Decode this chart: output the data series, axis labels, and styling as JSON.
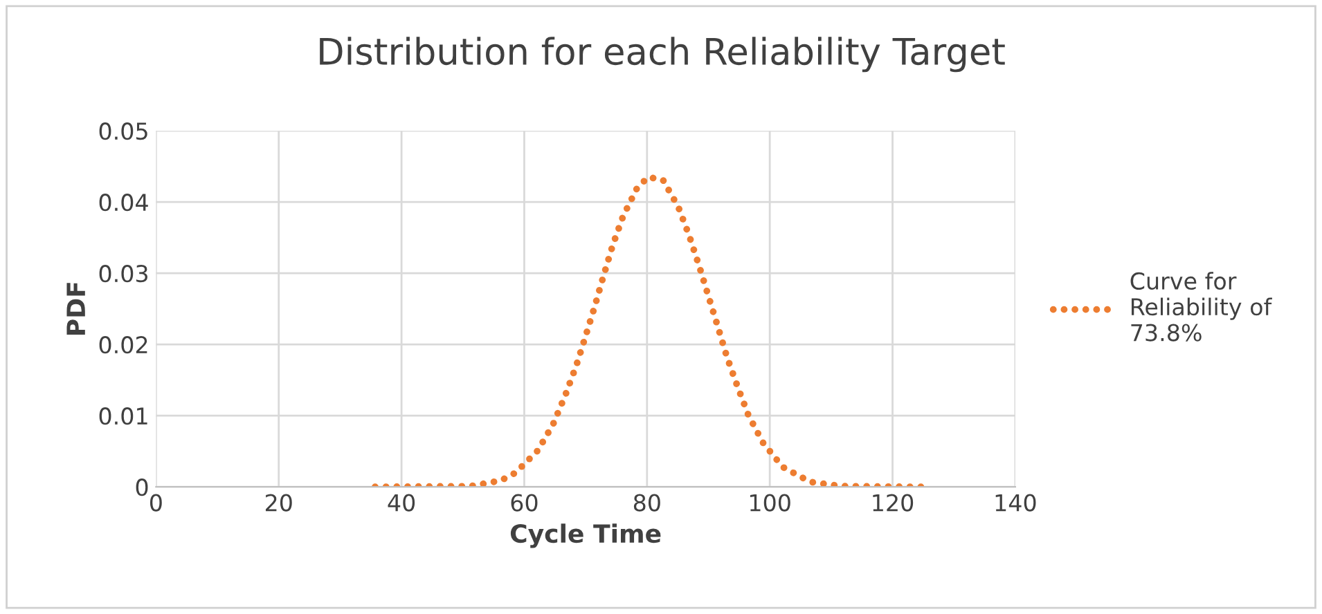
{
  "chart_data": {
    "type": "line",
    "title": "Distribution for each Reliability Target",
    "xlabel": "Cycle Time",
    "ylabel": "PDF",
    "xlim": [
      0,
      140
    ],
    "xticks": [
      0,
      20,
      40,
      60,
      80,
      100,
      120,
      140
    ],
    "ylim": [
      0,
      0.05
    ],
    "yticks": [
      0,
      0.01,
      0.02,
      0.03,
      0.04,
      0.05
    ],
    "grid": true,
    "legend": "right",
    "line_style": "dotted",
    "marker": "none",
    "series": [
      {
        "name": "Curve for\nReliability of\n73.8%",
        "color": "#ed7d31",
        "x": [
          35.7,
          51.2,
          56.2,
          58.6,
          62.2,
          64.7,
          66.7,
          68.5,
          70.0,
          71.5,
          72.9,
          74.4,
          76.1,
          78.4,
          80.2,
          82.6,
          85.1,
          86.9,
          88.5,
          90.0,
          91.5,
          93.0,
          94.7,
          96.5,
          98.9,
          102.1,
          106.6,
          111.7,
          124.7
        ],
        "values": [
          0,
          0.0001,
          0.0009,
          0.002,
          0.0051,
          0.0088,
          0.0129,
          0.0171,
          0.0212,
          0.0254,
          0.0296,
          0.0339,
          0.038,
          0.042,
          0.0435,
          0.0431,
          0.0393,
          0.0352,
          0.031,
          0.0268,
          0.0226,
          0.0183,
          0.0142,
          0.0101,
          0.0062,
          0.0028,
          0.0007,
          0.0001,
          0
        ]
      }
    ]
  }
}
